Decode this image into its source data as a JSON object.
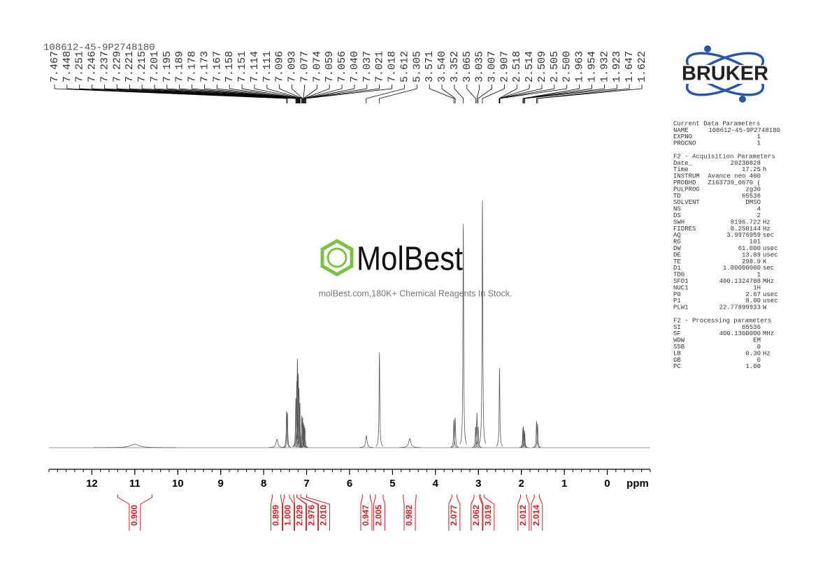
{
  "chart_data": {
    "type": "nmr",
    "title": "108612-45-9P2748180",
    "xlabel": "ppm",
    "xlim": [
      13,
      -1
    ],
    "xticks": [
      12,
      11,
      10,
      9,
      8,
      7,
      6,
      5,
      4,
      3,
      2,
      1,
      0
    ],
    "xminor_step": 0.2,
    "ylim": [
      0,
      100
    ],
    "peak_labels": [
      "7.467",
      "7.448",
      "7.251",
      "7.246",
      "7.237",
      "7.229",
      "7.221",
      "7.215",
      "7.201",
      "7.195",
      "7.189",
      "7.178",
      "7.173",
      "7.167",
      "7.158",
      "7.151",
      "7.114",
      "7.111",
      "7.096",
      "7.093",
      "7.077",
      "7.074",
      "7.059",
      "7.056",
      "7.040",
      "7.037",
      "7.021",
      "7.018",
      "5.612",
      "5.305",
      "3.571",
      "3.540",
      "3.352",
      "3.065",
      "3.035",
      "3.007",
      "2.907",
      "2.518",
      "2.514",
      "2.509",
      "2.505",
      "2.500",
      "1.963",
      "1.954",
      "1.932",
      "1.923",
      "1.647",
      "1.622"
    ],
    "signals": {
      "ppm": [
        11.0,
        7.69,
        7.467,
        7.448,
        7.251,
        7.229,
        7.215,
        7.195,
        7.178,
        7.158,
        7.111,
        7.093,
        7.077,
        7.059,
        7.04,
        5.61,
        5.305,
        4.6,
        3.571,
        3.54,
        3.352,
        3.065,
        3.035,
        3.007,
        2.907,
        2.509,
        1.963,
        1.954,
        1.932,
        1.923,
        1.647,
        1.622
      ],
      "intensity": [
        1.4,
        3.4,
        14.7,
        14.0,
        20,
        27,
        36,
        30,
        24,
        18,
        13,
        12,
        10,
        9,
        8,
        4.8,
        38.4,
        3.7,
        11.3,
        12.1,
        90.4,
        8.5,
        14.1,
        8.5,
        100,
        32.2,
        8,
        8.5,
        7,
        6,
        10.7,
        9.6
      ],
      "width": [
        0.12,
        0.025,
        0.004,
        0.004,
        0.004,
        0.004,
        0.004,
        0.004,
        0.004,
        0.004,
        0.004,
        0.004,
        0.004,
        0.004,
        0.004,
        0.02,
        0.004,
        0.03,
        0.004,
        0.004,
        0.008,
        0.004,
        0.004,
        0.004,
        0.004,
        0.004,
        0.004,
        0.004,
        0.004,
        0.004,
        0.004,
        0.004
      ]
    },
    "integrals": {
      "from": [
        11.4,
        7.8,
        7.52,
        7.3,
        7.225,
        7.14,
        5.7,
        5.4,
        4.75,
        3.62,
        3.1,
        2.95,
        2.02,
        1.7
      ],
      "to": [
        10.6,
        7.6,
        7.4,
        7.225,
        7.14,
        7.0,
        5.52,
        5.22,
        4.45,
        3.5,
        2.98,
        2.87,
        1.88,
        1.58
      ],
      "values": [
        0.9,
        0.899,
        1.0,
        2.029,
        2.976,
        2.01,
        0.947,
        2.005,
        0.982,
        2.077,
        2.062,
        3.019,
        2.012,
        2.014
      ],
      "value_labels": [
        "0.900",
        "0.899",
        "1.000",
        "2.029",
        "2.976",
        "2.010",
        "0.947",
        "2.005",
        "0.982",
        "2.077",
        "2.062",
        "3.019",
        "2.012",
        "2.014"
      ]
    }
  },
  "watermark": {
    "brand": "MolBest",
    "tagline": "molBest.com,180K+ Chemical Reagents In Stock."
  },
  "logo": "BRUKER",
  "parameters": [
    {
      "title": "Current Data Parameters",
      "rows": [
        [
          "NAME",
          "108612-45-9P2748180"
        ],
        [
          "EXPNO",
          "1"
        ],
        [
          "PROCNO",
          "1"
        ]
      ]
    },
    {
      "title": "F2 - Acquisition Parameters",
      "rows": [
        [
          "Date_",
          "20230828"
        ],
        [
          "Time",
          "17.25",
          "h"
        ],
        [
          "INSTRUM",
          "Avance neo 400"
        ],
        [
          "PROBHD",
          "Z163739_0670 ("
        ],
        [
          "PULPROG",
          "zg30"
        ],
        [
          "TD",
          "65536"
        ],
        [
          "SOLVENT",
          "DMSO"
        ],
        [
          "NS",
          "4"
        ],
        [
          "DS",
          "2"
        ],
        [
          "SWH",
          "8196.722",
          "Hz"
        ],
        [
          "FIDRES",
          "0.250144",
          "Hz"
        ],
        [
          "AQ",
          "3.9976959",
          "sec"
        ],
        [
          "RG",
          "101"
        ],
        [
          "DW",
          "61.000",
          "usec"
        ],
        [
          "DE",
          "13.89",
          "usec"
        ],
        [
          "TE",
          "298.9",
          "K"
        ],
        [
          "D1",
          "1.00000000",
          "sec"
        ],
        [
          "TD0",
          "1"
        ],
        [
          "SFO1",
          "400.1324708",
          "MHz"
        ],
        [
          "NUC1",
          "1H"
        ],
        [
          "P0",
          "2.67",
          "usec"
        ],
        [
          "P1",
          "8.00",
          "usec"
        ],
        [
          "PLW1",
          "22.77899933",
          "W"
        ]
      ]
    },
    {
      "title": "F2 - Processing parameters",
      "rows": [
        [
          "SI",
          "65536"
        ],
        [
          "SF",
          "400.1300000",
          "MHz"
        ],
        [
          "WDW",
          "EM"
        ],
        [
          "SSB",
          "0"
        ],
        [
          "LB",
          "0.30",
          "Hz"
        ],
        [
          "GB",
          "0"
        ],
        [
          "PC",
          "1.00"
        ]
      ]
    }
  ]
}
